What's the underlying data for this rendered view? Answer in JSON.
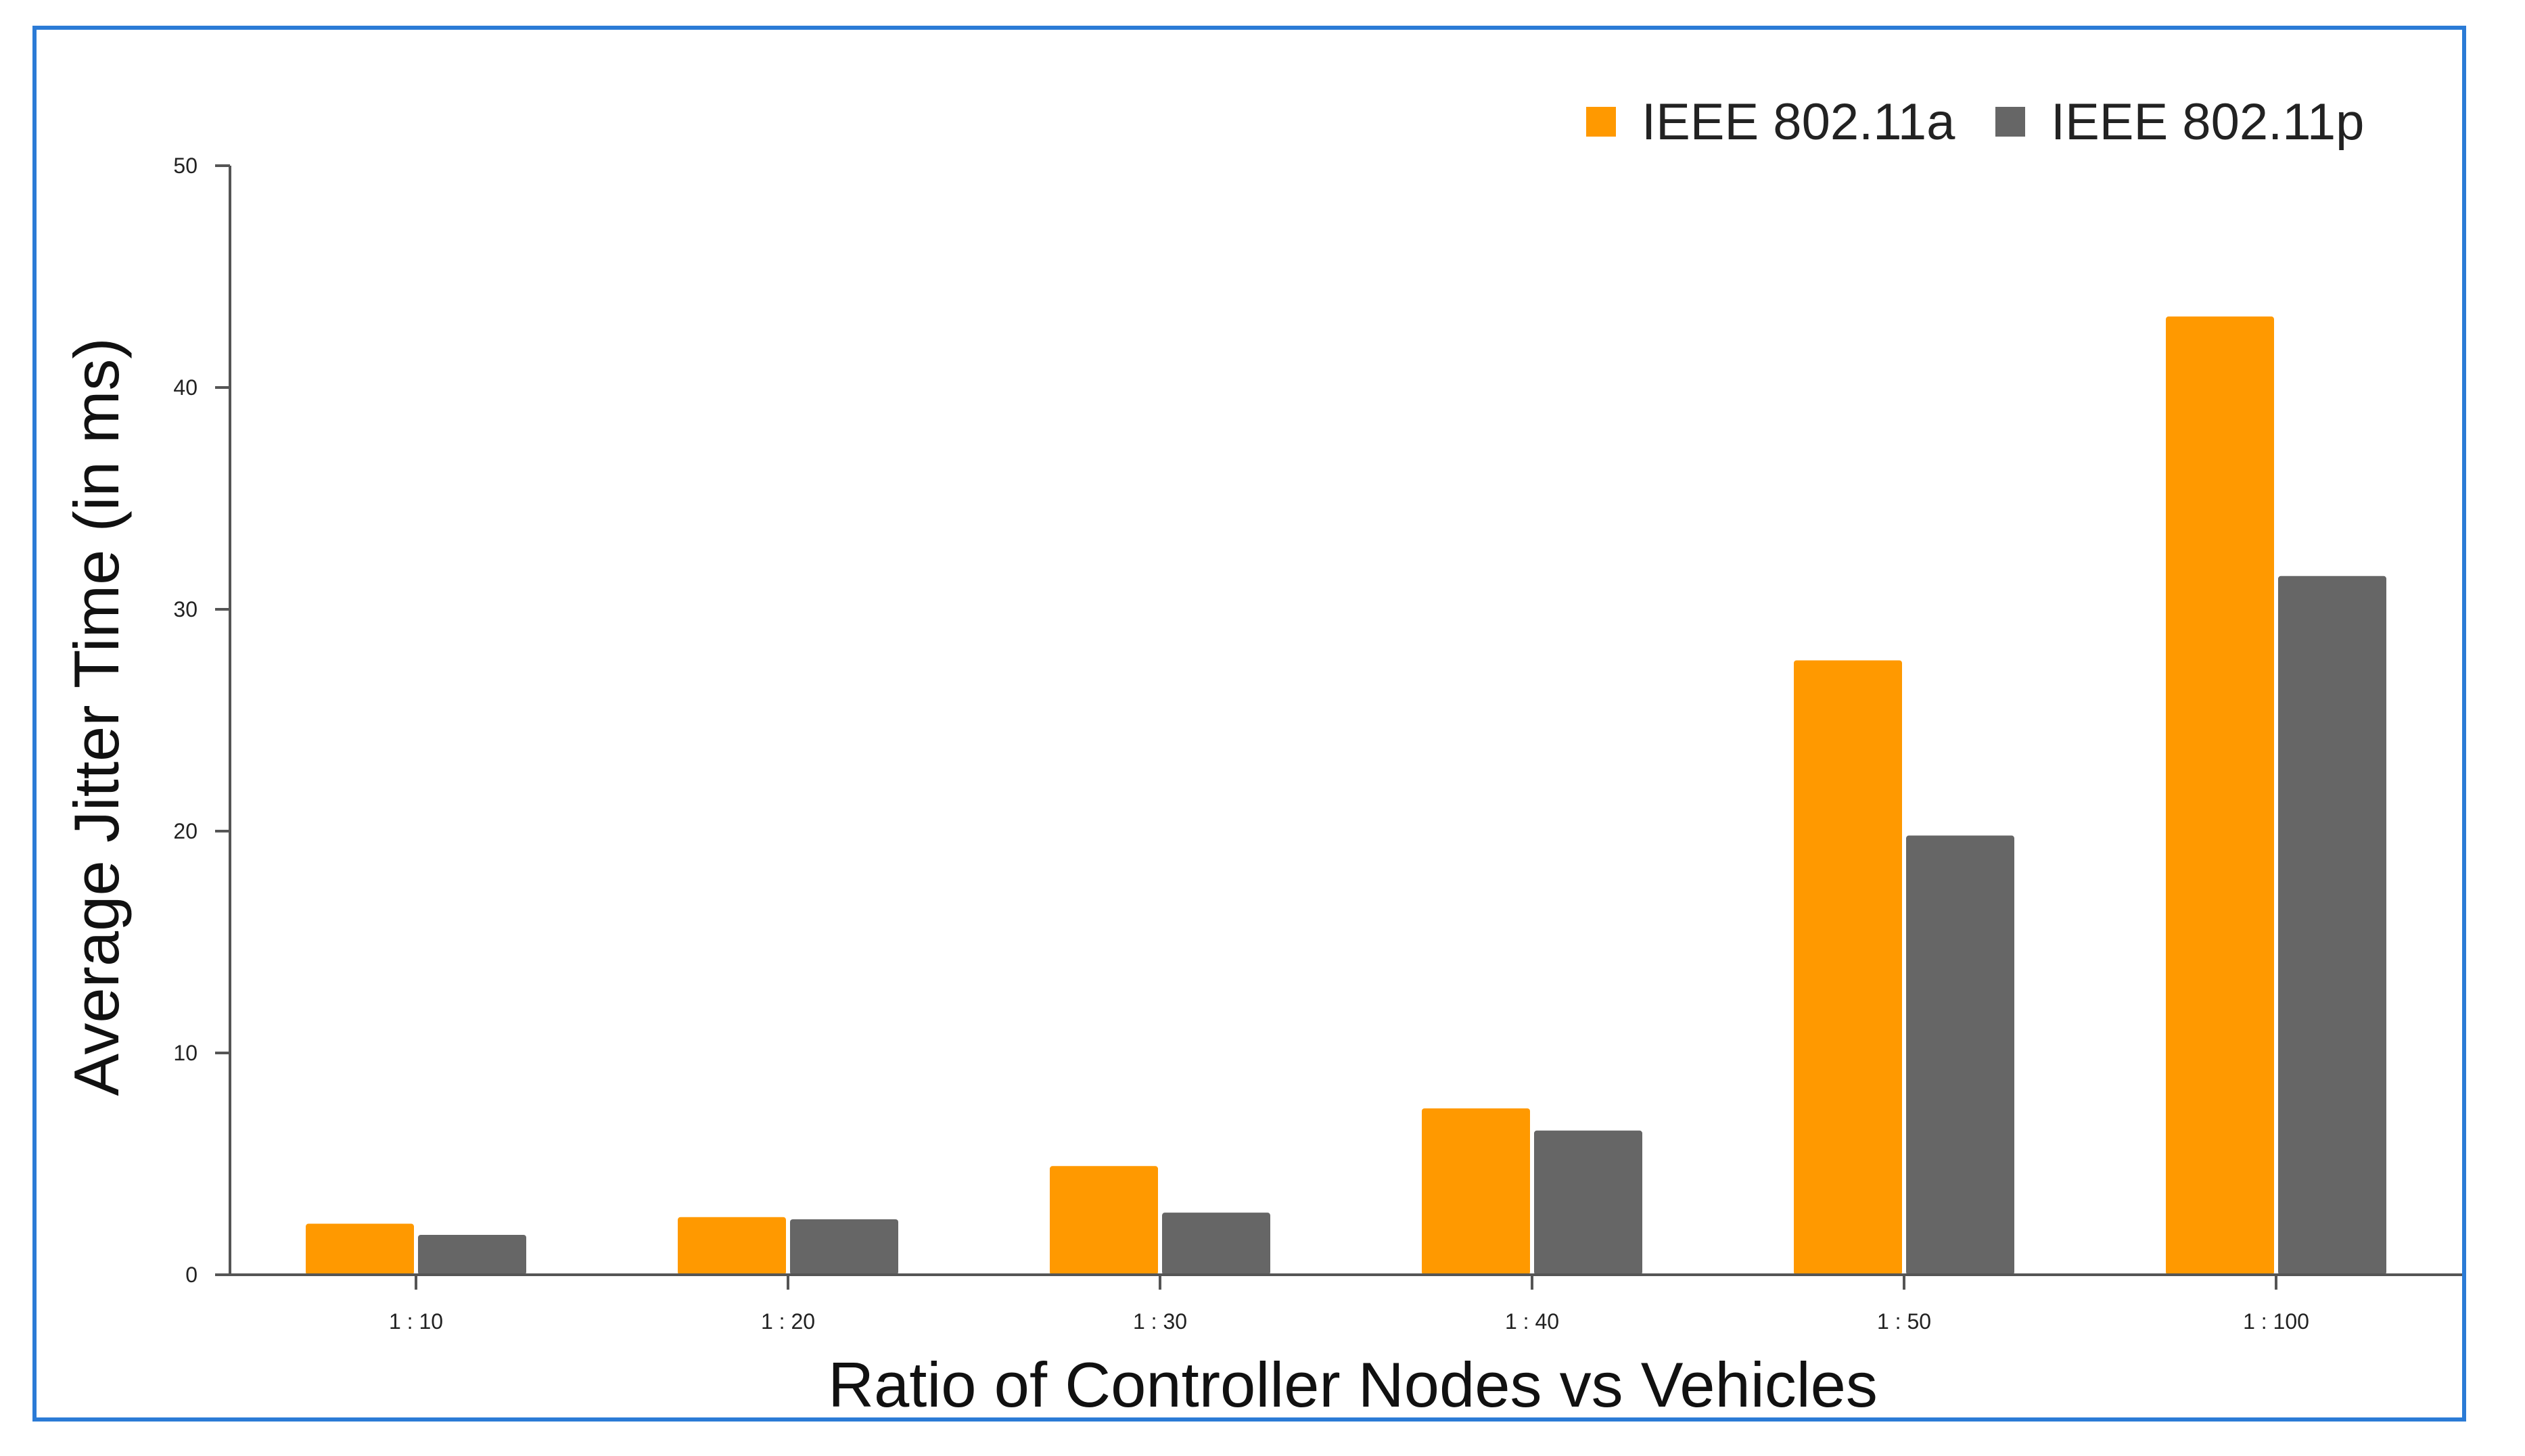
{
  "chart_data": {
    "type": "bar",
    "title": "",
    "xlabel": "Ratio of Controller Nodes vs Vehicles",
    "ylabel": "Average Jitter Time (in ms)",
    "categories": [
      "1 : 10",
      "1 : 20",
      "1 : 30",
      "1 : 40",
      "1 : 50",
      "1 : 100"
    ],
    "series": [
      {
        "name": "IEEE 802.11a",
        "color": "#ff9900",
        "values": [
          2.3,
          2.6,
          4.9,
          7.5,
          27.7,
          43.2
        ]
      },
      {
        "name": "IEEE 802.11p",
        "color": "#666666",
        "values": [
          1.8,
          2.5,
          2.8,
          6.5,
          19.8,
          31.5
        ]
      }
    ],
    "ylim": [
      0,
      50
    ],
    "yticks": [
      0,
      10,
      20,
      30,
      40,
      50
    ],
    "grid": false,
    "legend_position": "top-right"
  }
}
